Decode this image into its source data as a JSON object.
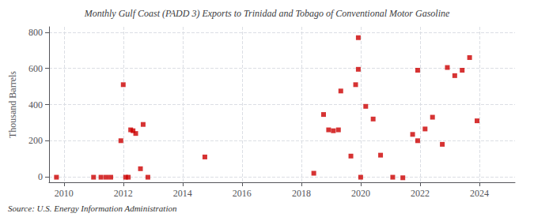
{
  "chart_data": {
    "type": "scatter",
    "title": "Monthly Gulf Coast (PADD 3) Exports to Trinidad and Tobago of Conventional Motor Gasoline",
    "ylabel": "Thousand Barrels",
    "annotation": "Source: U.S. Energy Information Administration",
    "color": "#cc0000",
    "marker": "square",
    "grid": true,
    "xlim": [
      2009.5,
      2025.2
    ],
    "ylim": [
      -30,
      830
    ],
    "xticks": [
      2010,
      2012,
      2014,
      2016,
      2018,
      2020,
      2022,
      2024
    ],
    "yticks": [
      0,
      200,
      400,
      600,
      800
    ],
    "x": [
      2009.75,
      2011.0,
      2011.25,
      2011.42,
      2011.58,
      2011.92,
      2012.0,
      2012.08,
      2012.17,
      2012.25,
      2012.33,
      2012.42,
      2012.58,
      2012.67,
      2012.83,
      2014.75,
      2018.42,
      2018.75,
      2018.92,
      2019.08,
      2019.25,
      2019.33,
      2019.67,
      2019.83,
      2019.92,
      2019.92,
      2020.0,
      2020.17,
      2020.42,
      2020.67,
      2021.08,
      2021.42,
      2021.75,
      2021.92,
      2021.92,
      2022.17,
      2022.42,
      2022.75,
      2022.92,
      2023.17,
      2023.42,
      2023.67,
      2023.92
    ],
    "values": [
      -2,
      -2,
      -2,
      -2,
      -2,
      200,
      510,
      -2,
      -2,
      260,
      255,
      240,
      45,
      290,
      -2,
      110,
      20,
      345,
      260,
      255,
      260,
      475,
      115,
      510,
      770,
      595,
      -2,
      390,
      320,
      120,
      -2,
      -5,
      235,
      200,
      590,
      265,
      330,
      180,
      605,
      560,
      590,
      660,
      310
    ]
  }
}
